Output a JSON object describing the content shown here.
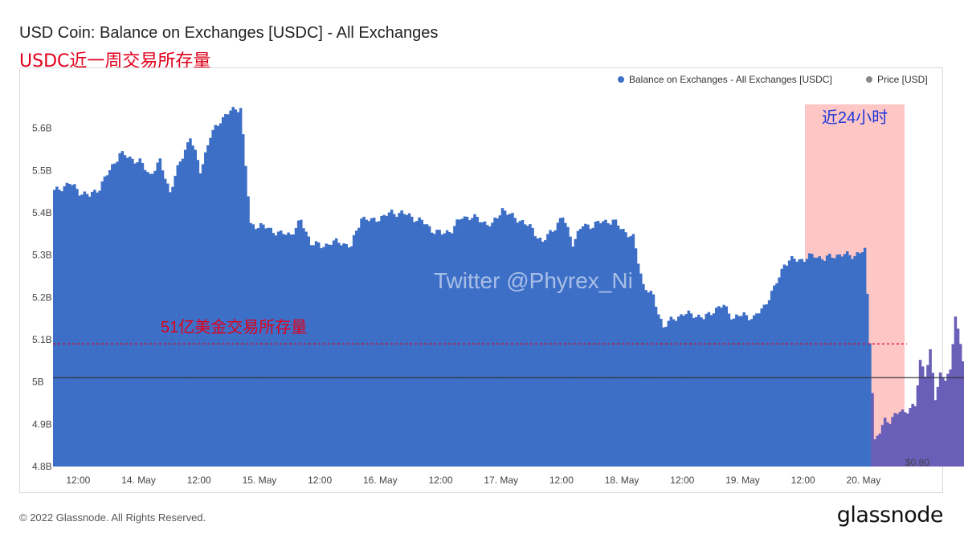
{
  "header": {
    "title": "USD Coin: Balance on Exchanges [USDC] - All Exchanges",
    "subtitle_cn": "USDC近一周交易所存量"
  },
  "legend": {
    "series1": "Balance on Exchanges - All Exchanges [USDC]",
    "series1_color": "#3d6fc7",
    "series2": "Price [USD]",
    "series2_color": "#888888"
  },
  "annotations": {
    "highlight_label": "近24小时",
    "highlight_color": "#ffb3b3",
    "reference_label": "51亿美金交易所存量",
    "reference_value": 5.09,
    "reference_color": "#e0001b",
    "watermark": "Twitter @Phyrex_Ni"
  },
  "footer": {
    "copyright": "© 2022 Glassnode. All Rights Reserved.",
    "logo": "glassnode"
  },
  "chart_data": {
    "type": "bar",
    "ylim": [
      4.8,
      5.66
    ],
    "y_ticks": [
      "4.8B",
      "4.9B",
      "5B",
      "5.1B",
      "5.2B",
      "5.3B",
      "5.4B",
      "5.5B",
      "5.6B"
    ],
    "y_tick_values": [
      4.8,
      4.9,
      5.0,
      5.1,
      5.2,
      5.3,
      5.4,
      5.5,
      5.6
    ],
    "x_ticks": [
      "12:00",
      "14. May",
      "12:00",
      "15. May",
      "12:00",
      "16. May",
      "12:00",
      "17. May",
      "12:00",
      "18. May",
      "12:00",
      "19. May",
      "12:00",
      "20. May"
    ],
    "x_tick_hours": [
      -12,
      0,
      12,
      24,
      36,
      48,
      60,
      72,
      84,
      96,
      108,
      120,
      132,
      144
    ],
    "x_range_hours": [
      -17,
      152
    ],
    "highlight_range_hours": [
      126,
      152
    ],
    "price_axis_label": "$0.80",
    "price_line_level": 5.01,
    "series": [
      {
        "name": "Balance on Exchanges - All Exchanges [USDC]",
        "points": [
          [
            -17,
            5.45
          ],
          [
            -14,
            5.47
          ],
          [
            -12,
            5.45
          ],
          [
            -10,
            5.44
          ],
          [
            -8,
            5.46
          ],
          [
            -6,
            5.5
          ],
          [
            -4,
            5.54
          ],
          [
            -2,
            5.53
          ],
          [
            0,
            5.52
          ],
          [
            2,
            5.49
          ],
          [
            4,
            5.52
          ],
          [
            6,
            5.45
          ],
          [
            8,
            5.52
          ],
          [
            10,
            5.58
          ],
          [
            12,
            5.5
          ],
          [
            14,
            5.58
          ],
          [
            16,
            5.62
          ],
          [
            18,
            5.64
          ],
          [
            20,
            5.65
          ],
          [
            22,
            5.37
          ],
          [
            24,
            5.37
          ],
          [
            26,
            5.36
          ],
          [
            28,
            5.35
          ],
          [
            30,
            5.35
          ],
          [
            32,
            5.38
          ],
          [
            34,
            5.33
          ],
          [
            36,
            5.32
          ],
          [
            38,
            5.33
          ],
          [
            40,
            5.33
          ],
          [
            42,
            5.32
          ],
          [
            44,
            5.39
          ],
          [
            46,
            5.38
          ],
          [
            48,
            5.39
          ],
          [
            50,
            5.4
          ],
          [
            52,
            5.4
          ],
          [
            54,
            5.39
          ],
          [
            56,
            5.38
          ],
          [
            58,
            5.36
          ],
          [
            60,
            5.35
          ],
          [
            62,
            5.36
          ],
          [
            64,
            5.39
          ],
          [
            66,
            5.39
          ],
          [
            68,
            5.38
          ],
          [
            70,
            5.37
          ],
          [
            72,
            5.41
          ],
          [
            74,
            5.39
          ],
          [
            76,
            5.38
          ],
          [
            78,
            5.36
          ],
          [
            80,
            5.33
          ],
          [
            82,
            5.36
          ],
          [
            84,
            5.39
          ],
          [
            86,
            5.33
          ],
          [
            88,
            5.37
          ],
          [
            90,
            5.37
          ],
          [
            92,
            5.38
          ],
          [
            94,
            5.38
          ],
          [
            96,
            5.36
          ],
          [
            98,
            5.34
          ],
          [
            100,
            5.23
          ],
          [
            102,
            5.2
          ],
          [
            104,
            5.13
          ],
          [
            106,
            5.15
          ],
          [
            108,
            5.16
          ],
          [
            110,
            5.16
          ],
          [
            112,
            5.15
          ],
          [
            114,
            5.17
          ],
          [
            116,
            5.18
          ],
          [
            118,
            5.15
          ],
          [
            120,
            5.16
          ],
          [
            122,
            5.15
          ],
          [
            124,
            5.18
          ],
          [
            126,
            5.22
          ],
          [
            128,
            5.28
          ],
          [
            130,
            5.29
          ],
          [
            132,
            5.29
          ],
          [
            134,
            5.3
          ],
          [
            136,
            5.29
          ],
          [
            138,
            5.3
          ],
          [
            140,
            5.3
          ],
          [
            142,
            5.3
          ],
          [
            144,
            5.31
          ],
          [
            145,
            5.1
          ],
          [
            146,
            4.86
          ],
          [
            147,
            4.88
          ],
          [
            148,
            4.91
          ],
          [
            149,
            4.91
          ],
          [
            150,
            4.92
          ],
          [
            151,
            4.93
          ],
          [
            152,
            4.93
          ],
          [
            153,
            4.94
          ],
          [
            154,
            4.94
          ],
          [
            155,
            5.05
          ],
          [
            156,
            5.02
          ],
          [
            157,
            5.07
          ],
          [
            158,
            4.96
          ],
          [
            159,
            5.02
          ],
          [
            160,
            5.01
          ],
          [
            161,
            5.02
          ],
          [
            162,
            5.16
          ],
          [
            163,
            5.09
          ],
          [
            164,
            5.02
          ]
        ]
      },
      {
        "name": "Price [USD]",
        "level": 5.01
      }
    ]
  }
}
